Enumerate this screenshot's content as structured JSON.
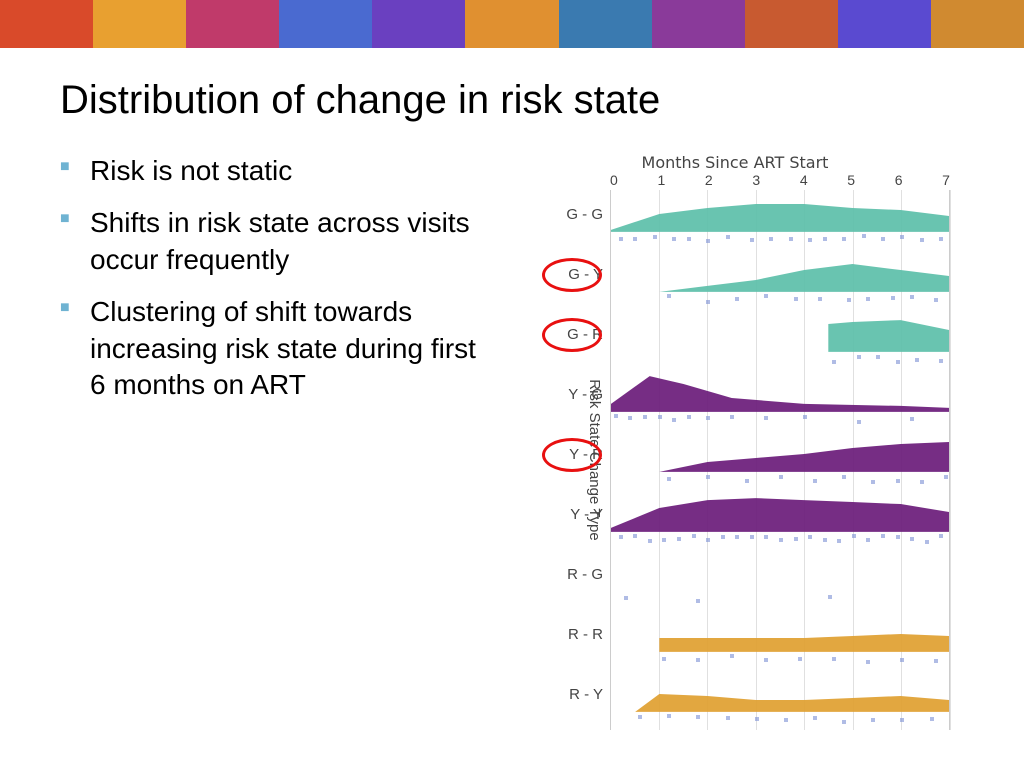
{
  "title": "Distribution of change in risk state",
  "bullets": [
    "Risk is not static",
    "Shifts in risk state across visits occur frequently",
    "Clustering of shift towards increasing risk state during first 6 months on ART"
  ],
  "chart": {
    "x_title": "Months Since ART Start",
    "y_title": "Risk State Change Type",
    "x_ticks": [
      "0",
      "1",
      "2",
      "3",
      "4",
      "5",
      "6",
      "7"
    ],
    "x_range": [
      0,
      7
    ],
    "colors": {
      "teal": "#5cbfa9",
      "purple": "#6a1b7a",
      "orange": "#e0a030",
      "grid": "#e0e0e0",
      "points": "#7b8fd4",
      "circle": "#e81010"
    },
    "rows": [
      {
        "label": "G - G",
        "color": "teal",
        "circled": false,
        "shape": [
          [
            0,
            0.05
          ],
          [
            1,
            0.45
          ],
          [
            2,
            0.6
          ],
          [
            3,
            0.7
          ],
          [
            4,
            0.7
          ],
          [
            5,
            0.6
          ],
          [
            6,
            0.55
          ],
          [
            7,
            0.4
          ]
        ],
        "points": [
          0.2,
          0.5,
          0.9,
          1.3,
          1.6,
          2.0,
          2.4,
          2.9,
          3.3,
          3.7,
          4.1,
          4.4,
          4.8,
          5.2,
          5.6,
          6.0,
          6.4,
          6.8
        ]
      },
      {
        "label": "G - Y",
        "color": "teal",
        "circled": true,
        "shape": [
          [
            1,
            0
          ],
          [
            2,
            0.15
          ],
          [
            3,
            0.3
          ],
          [
            4,
            0.55
          ],
          [
            5,
            0.7
          ],
          [
            6,
            0.55
          ],
          [
            7,
            0.4
          ]
        ],
        "points": [
          1.2,
          2.0,
          2.6,
          3.2,
          3.8,
          4.3,
          4.9,
          5.3,
          5.8,
          6.2,
          6.7
        ]
      },
      {
        "label": "G - R",
        "color": "teal",
        "circled": true,
        "shape": [
          [
            4.5,
            0
          ],
          [
            4.5,
            0.7
          ],
          [
            5,
            0.75
          ],
          [
            6,
            0.8
          ],
          [
            7,
            0.55
          ]
        ],
        "points": [
          4.6,
          5.1,
          5.5,
          5.9,
          6.3,
          6.8
        ]
      },
      {
        "label": "Y - G",
        "color": "purple",
        "circled": false,
        "shape": [
          [
            0,
            0.2
          ],
          [
            0.8,
            0.9
          ],
          [
            1.5,
            0.7
          ],
          [
            2.5,
            0.35
          ],
          [
            4,
            0.2
          ],
          [
            6,
            0.15
          ],
          [
            7,
            0.1
          ]
        ],
        "points": [
          0.1,
          0.4,
          0.7,
          1.0,
          1.3,
          1.6,
          2.0,
          2.5,
          3.2,
          4.0,
          5.1,
          6.2
        ]
      },
      {
        "label": "Y - R",
        "color": "purple",
        "circled": true,
        "shape": [
          [
            1,
            0
          ],
          [
            2,
            0.25
          ],
          [
            3,
            0.35
          ],
          [
            4,
            0.45
          ],
          [
            5,
            0.6
          ],
          [
            6,
            0.7
          ],
          [
            7,
            0.75
          ]
        ],
        "points": [
          1.2,
          2.0,
          2.8,
          3.5,
          4.2,
          4.8,
          5.4,
          5.9,
          6.4,
          6.9
        ]
      },
      {
        "label": "Y - Y",
        "color": "purple",
        "circled": false,
        "shape": [
          [
            0,
            0.1
          ],
          [
            1,
            0.6
          ],
          [
            2,
            0.8
          ],
          [
            3,
            0.85
          ],
          [
            4,
            0.8
          ],
          [
            5,
            0.75
          ],
          [
            6,
            0.7
          ],
          [
            7,
            0.5
          ]
        ],
        "points": [
          0.2,
          0.5,
          0.8,
          1.1,
          1.4,
          1.7,
          2.0,
          2.3,
          2.6,
          2.9,
          3.2,
          3.5,
          3.8,
          4.1,
          4.4,
          4.7,
          5.0,
          5.3,
          5.6,
          5.9,
          6.2,
          6.5,
          6.8
        ]
      },
      {
        "label": "R - G",
        "color": "orange",
        "circled": false,
        "shape": [],
        "points": [
          0.3,
          1.8,
          4.5
        ]
      },
      {
        "label": "R - R",
        "color": "orange",
        "circled": false,
        "shape": [
          [
            1,
            0
          ],
          [
            1,
            0.35
          ],
          [
            2,
            0.35
          ],
          [
            3,
            0.35
          ],
          [
            4,
            0.35
          ],
          [
            5,
            0.4
          ],
          [
            6,
            0.45
          ],
          [
            7,
            0.4
          ]
        ],
        "points": [
          1.1,
          1.8,
          2.5,
          3.2,
          3.9,
          4.6,
          5.3,
          6.0,
          6.7
        ]
      },
      {
        "label": "R - Y",
        "color": "orange",
        "circled": false,
        "shape": [
          [
            0.5,
            0
          ],
          [
            1,
            0.45
          ],
          [
            2,
            0.4
          ],
          [
            3,
            0.3
          ],
          [
            4,
            0.3
          ],
          [
            5,
            0.35
          ],
          [
            6,
            0.4
          ],
          [
            7,
            0.3
          ]
        ],
        "points": [
          0.6,
          1.2,
          1.8,
          2.4,
          3.0,
          3.6,
          4.2,
          4.8,
          5.4,
          6.0,
          6.6
        ]
      }
    ]
  },
  "banner_colors": [
    "#d94a2a",
    "#e8a030",
    "#c03a6a",
    "#4a6ad0",
    "#6a40c0",
    "#e09030",
    "#3a7ab0",
    "#8a3a9a",
    "#c85a30",
    "#5a4ad0",
    "#d08a30"
  ]
}
